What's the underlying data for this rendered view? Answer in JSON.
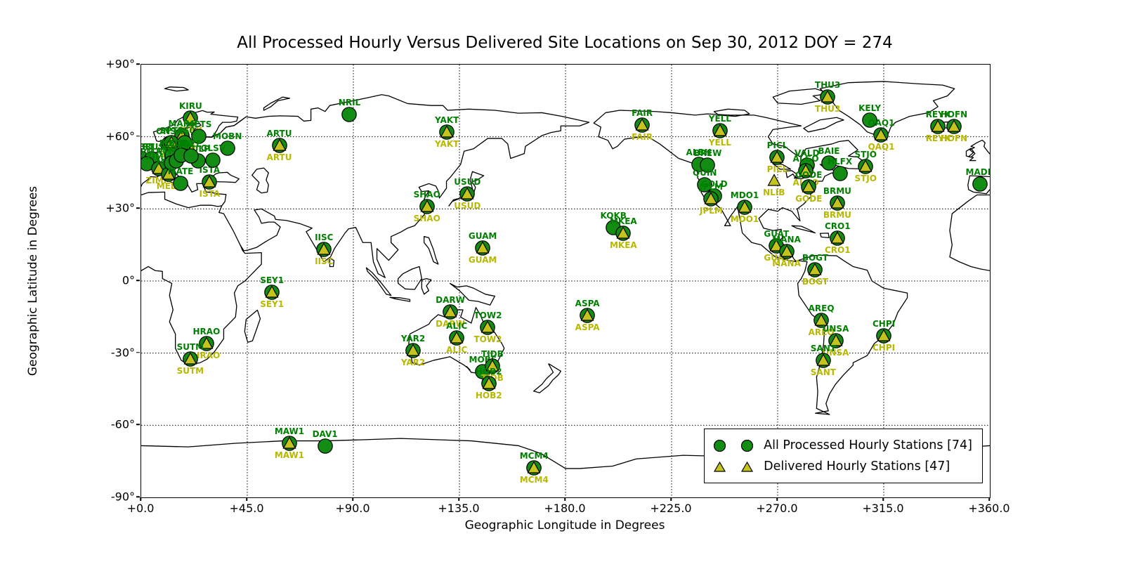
{
  "title": "All Processed Hourly Versus Delivered Site Locations on Sep 30, 2012 DOY = 274",
  "axes": {
    "xlabel": "Geographic Longitude in Degrees",
    "ylabel": "Geographic Latitude in Degrees",
    "xlim": [
      0,
      360
    ],
    "ylim": [
      -90,
      90
    ],
    "grid": "dotted",
    "x_ticks": [
      {
        "label": "+0.0",
        "value": 0
      },
      {
        "label": "+45.0",
        "value": 45
      },
      {
        "label": "+90.0",
        "value": 90
      },
      {
        "label": "+135.0",
        "value": 135
      },
      {
        "label": "+180.0",
        "value": 180
      },
      {
        "label": "+225.0",
        "value": 225
      },
      {
        "label": "+270.0",
        "value": 270
      },
      {
        "label": "+315.0",
        "value": 315
      },
      {
        "label": "+360.0",
        "value": 360
      }
    ],
    "y_ticks": [
      {
        "label": "+90°",
        "value": 90
      },
      {
        "label": "+60°",
        "value": 60
      },
      {
        "label": "+30°",
        "value": 30
      },
      {
        "label": "0°",
        "value": 0
      },
      {
        "label": "-30°",
        "value": -30
      },
      {
        "label": "-60°",
        "value": -60
      },
      {
        "label": "-90°",
        "value": -90
      }
    ]
  },
  "legend": {
    "processed_label": "All Processed Hourly Stations [74]",
    "delivered_label": "Delivered Hourly Stations [47]",
    "processed_count": 74,
    "delivered_count": 47
  },
  "colors": {
    "processed_marker": "#128c12",
    "delivered_marker": "#c4c41c",
    "marker_edge": "#000000",
    "processed_label_text": "#008000",
    "delivered_label_text": "#b8b800"
  },
  "chart_data": {
    "type": "scatter",
    "title": "All Processed Hourly Versus Delivered Site Locations on Sep 30, 2012 DOY = 274",
    "xlabel": "Geographic Longitude in Degrees",
    "ylabel": "Geographic Latitude in Degrees",
    "x_range": [
      0,
      360
    ],
    "y_range": [
      -90,
      90
    ],
    "legend_position": "lower right",
    "series_note": "processed=green circle with green label above; delivered=olive triangle with yellow label below",
    "stations": [
      {
        "id": "KIRU",
        "lat": 67.86,
        "lon": 20.97,
        "processed": true,
        "delivered": true
      },
      {
        "id": "MAR6",
        "lat": 60.6,
        "lon": 17.26,
        "processed": true,
        "delivered": true
      },
      {
        "id": "ONSA",
        "lat": 57.4,
        "lon": 11.93,
        "processed": true,
        "delivered": false
      },
      {
        "id": "SPT0",
        "lat": 57.71,
        "lon": 12.89,
        "processed": true,
        "delivered": true
      },
      {
        "id": "VIS0",
        "lat": 57.65,
        "lon": 18.37,
        "processed": true,
        "delivered": false
      },
      {
        "id": "METS",
        "lat": 60.22,
        "lon": 24.4,
        "processed": true,
        "delivered": false
      },
      {
        "id": "MOBN",
        "lat": 55.11,
        "lon": 36.57,
        "processed": true,
        "delivered": false
      },
      {
        "id": "ARTU",
        "lat": 56.43,
        "lon": 58.56,
        "processed": true,
        "delivered": true
      },
      {
        "id": "NRIL",
        "lat": 69.36,
        "lon": 88.36,
        "processed": true,
        "delivered": false
      },
      {
        "id": "HERT",
        "lat": 50.87,
        "lon": 0.33,
        "processed": true,
        "delivered": false
      },
      {
        "id": "BRUS",
        "lat": 50.8,
        "lon": 4.36,
        "processed": true,
        "delivered": false
      },
      {
        "id": "OPMT",
        "lat": 48.84,
        "lon": 2.33,
        "processed": true,
        "delivered": false
      },
      {
        "id": "ZIMM",
        "lat": 46.88,
        "lon": 7.47,
        "processed": true,
        "delivered": true
      },
      {
        "id": "MEDI",
        "lat": 44.52,
        "lon": 11.65,
        "processed": true,
        "delivered": true
      },
      {
        "id": "ISTA",
        "lat": 41.1,
        "lon": 29.02,
        "processed": true,
        "delivered": true
      },
      {
        "id": "SULP",
        "lat": 49.84,
        "lon": 24.01,
        "processed": true,
        "delivered": false
      },
      {
        "id": "MADR",
        "lat": 40.43,
        "lon": 355.75,
        "processed": true,
        "delivered": false
      },
      {
        "id": "POTS",
        "lat": 52.38,
        "lon": 13.07,
        "processed": true,
        "delivered": false
      },
      {
        "id": "WTZR",
        "lat": 49.14,
        "lon": 12.88,
        "processed": true,
        "delivered": false
      },
      {
        "id": "GOPE",
        "lat": 49.91,
        "lon": 14.79,
        "processed": true,
        "delivered": false
      },
      {
        "id": "BOR1",
        "lat": 52.28,
        "lon": 17.07,
        "processed": true,
        "delivered": false
      },
      {
        "id": "JOZE",
        "lat": 52.1,
        "lon": 21.03,
        "processed": true,
        "delivered": false
      },
      {
        "id": "GLSV",
        "lat": 50.36,
        "lon": 30.5,
        "processed": true,
        "delivered": false
      },
      {
        "id": "MATE",
        "lat": 40.65,
        "lon": 16.7,
        "processed": true,
        "delivered": false
      },
      {
        "id": "YAKT",
        "lat": 62.03,
        "lon": 129.68,
        "processed": true,
        "delivered": true
      },
      {
        "id": "USUD",
        "lat": 36.13,
        "lon": 138.36,
        "processed": true,
        "delivered": true
      },
      {
        "id": "SHAO",
        "lat": 31.1,
        "lon": 121.2,
        "processed": true,
        "delivered": true
      },
      {
        "id": "IISC",
        "lat": 13.02,
        "lon": 77.57,
        "processed": true,
        "delivered": true
      },
      {
        "id": "GUAM",
        "lat": 13.59,
        "lon": 144.87,
        "processed": true,
        "delivered": true
      },
      {
        "id": "KOKB",
        "lat": 22.13,
        "lon": 200.34,
        "processed": true,
        "delivered": false
      },
      {
        "id": "MKEA",
        "lat": 19.8,
        "lon": 204.54,
        "processed": true,
        "delivered": true
      },
      {
        "id": "ASPA",
        "lat": -14.33,
        "lon": 189.28,
        "processed": true,
        "delivered": true
      },
      {
        "id": "SEY1",
        "lat": -4.67,
        "lon": 55.48,
        "processed": true,
        "delivered": true
      },
      {
        "id": "DARW",
        "lat": -12.84,
        "lon": 131.13,
        "processed": true,
        "delivered": true
      },
      {
        "id": "TOW2",
        "lat": -19.27,
        "lon": 147.06,
        "processed": true,
        "delivered": true
      },
      {
        "id": "ALIC",
        "lat": -23.67,
        "lon": 133.89,
        "processed": true,
        "delivered": true
      },
      {
        "id": "YAR2",
        "lat": -29.05,
        "lon": 115.35,
        "processed": true,
        "delivered": true
      },
      {
        "id": "MOBS",
        "lat": -37.83,
        "lon": 144.98,
        "processed": true,
        "delivered": false
      },
      {
        "id": "TIDB",
        "lat": -35.4,
        "lon": 148.98,
        "processed": true,
        "delivered": true
      },
      {
        "id": "HOB2",
        "lat": -42.8,
        "lon": 147.44,
        "processed": true,
        "delivered": true
      },
      {
        "id": "MAW1",
        "lat": -67.6,
        "lon": 62.87,
        "processed": true,
        "delivered": true
      },
      {
        "id": "DAV1",
        "lat": -68.58,
        "lon": 77.97,
        "processed": true,
        "delivered": false
      },
      {
        "id": "MCM4",
        "lat": -77.84,
        "lon": 166.67,
        "processed": true,
        "delivered": true
      },
      {
        "id": "HRAO",
        "lat": -25.89,
        "lon": 27.69,
        "processed": true,
        "delivered": true
      },
      {
        "id": "SUTM",
        "lat": -32.38,
        "lon": 20.81,
        "processed": true,
        "delivered": true
      },
      {
        "id": "FAIR",
        "lat": 64.98,
        "lon": 212.5,
        "processed": true,
        "delivered": true
      },
      {
        "id": "YELL",
        "lat": 62.48,
        "lon": 245.52,
        "processed": true,
        "delivered": true
      },
      {
        "id": "ALBH",
        "lat": 48.39,
        "lon": 236.51,
        "processed": true,
        "delivered": false
      },
      {
        "id": "BREW",
        "lat": 48.13,
        "lon": 240.32,
        "processed": true,
        "delivered": false
      },
      {
        "id": "QUIN",
        "lat": 39.97,
        "lon": 239.06,
        "processed": true,
        "delivered": false
      },
      {
        "id": "GOLD",
        "lat": 35.43,
        "lon": 243.11,
        "processed": true,
        "delivered": false
      },
      {
        "id": "JPLM",
        "lat": 34.2,
        "lon": 241.83,
        "processed": true,
        "delivered": true
      },
      {
        "id": "MDO1",
        "lat": 30.68,
        "lon": 255.99,
        "processed": true,
        "delivered": true
      },
      {
        "id": "PICL",
        "lat": 51.48,
        "lon": 269.84,
        "processed": true,
        "delivered": true
      },
      {
        "id": "NLIB",
        "lat": 41.77,
        "lon": 268.43,
        "processed": false,
        "delivered": true
      },
      {
        "id": "VALD",
        "lat": 48.1,
        "lon": 282.44,
        "processed": true,
        "delivered": false
      },
      {
        "id": "ALGO",
        "lat": 45.96,
        "lon": 281.93,
        "processed": true,
        "delivered": true
      },
      {
        "id": "GODE",
        "lat": 39.02,
        "lon": 283.17,
        "processed": true,
        "delivered": true
      },
      {
        "id": "BAIE",
        "lat": 49.19,
        "lon": 291.74,
        "processed": true,
        "delivered": false
      },
      {
        "id": "HLFX",
        "lat": 44.68,
        "lon": 296.39,
        "processed": true,
        "delivered": false
      },
      {
        "id": "STJO",
        "lat": 47.6,
        "lon": 307.32,
        "processed": true,
        "delivered": true
      },
      {
        "id": "BRMU",
        "lat": 32.37,
        "lon": 295.3,
        "processed": true,
        "delivered": true
      },
      {
        "id": "THU3",
        "lat": 76.54,
        "lon": 291.18,
        "processed": true,
        "delivered": true
      },
      {
        "id": "KELY",
        "lat": 66.99,
        "lon": 309.06,
        "processed": true,
        "delivered": false
      },
      {
        "id": "QAQ1",
        "lat": 60.72,
        "lon": 313.95,
        "processed": true,
        "delivered": true
      },
      {
        "id": "REYK",
        "lat": 64.14,
        "lon": 338.04,
        "processed": true,
        "delivered": true
      },
      {
        "id": "HOFN",
        "lat": 64.27,
        "lon": 344.8,
        "processed": true,
        "delivered": true
      },
      {
        "id": "GUAT",
        "lat": 14.59,
        "lon": 269.48,
        "processed": true,
        "delivered": true
      },
      {
        "id": "MANA",
        "lat": 12.15,
        "lon": 273.75,
        "processed": true,
        "delivered": true
      },
      {
        "id": "CRO1",
        "lat": 17.76,
        "lon": 295.42,
        "processed": true,
        "delivered": true
      },
      {
        "id": "BOGT",
        "lat": 4.64,
        "lon": 285.92,
        "processed": true,
        "delivered": true
      },
      {
        "id": "AREQ",
        "lat": -16.47,
        "lon": 288.51,
        "processed": true,
        "delivered": true
      },
      {
        "id": "UNSA",
        "lat": -24.73,
        "lon": 294.59,
        "processed": true,
        "delivered": true
      },
      {
        "id": "SANT",
        "lat": -33.15,
        "lon": 289.33,
        "processed": true,
        "delivered": true
      },
      {
        "id": "CHPI",
        "lat": -22.69,
        "lon": 315.01,
        "processed": true,
        "delivered": true
      }
    ]
  }
}
